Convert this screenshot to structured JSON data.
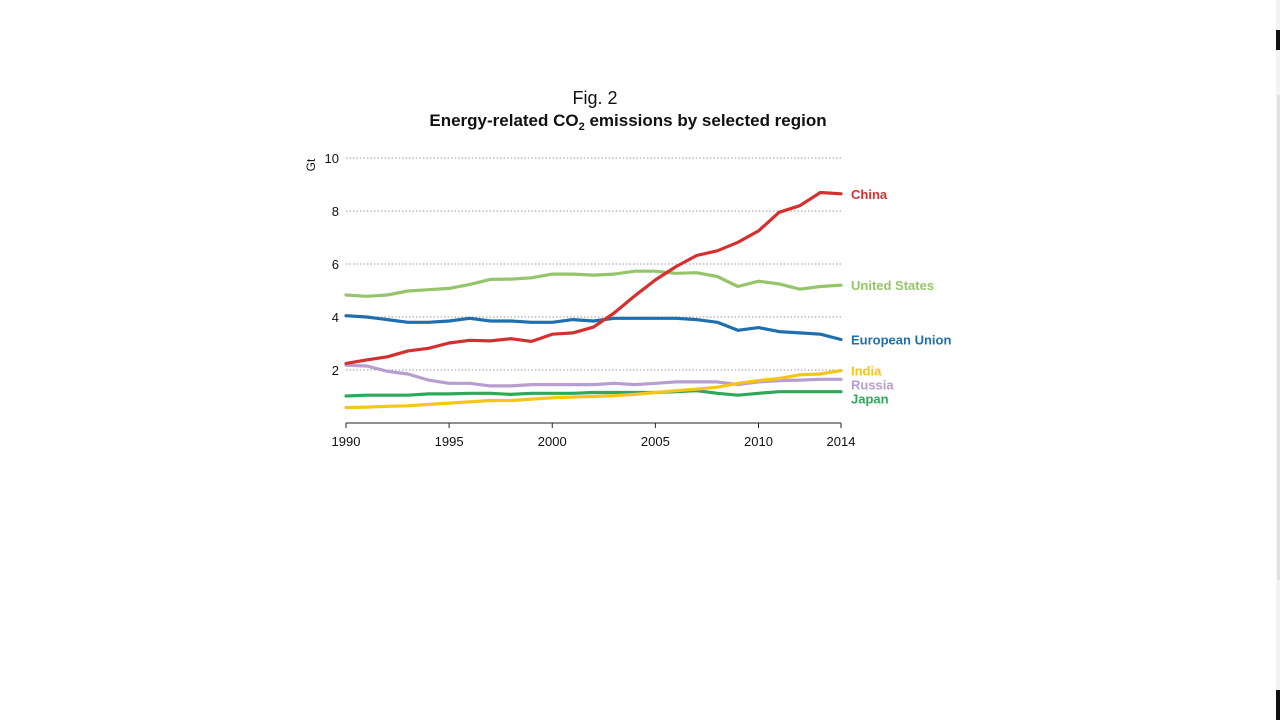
{
  "figure": {
    "label": "Fig. 2",
    "title_pre": "Energy-related CO",
    "title_sub": "2",
    "title_post": " emissions by selected region"
  },
  "chart_data": {
    "type": "line",
    "ylabel": "Gt",
    "xlabel": "",
    "ylim": [
      0,
      10
    ],
    "xlim": [
      1990,
      2014
    ],
    "yticks": [
      2,
      4,
      6,
      8,
      10
    ],
    "xticks": [
      1990,
      1995,
      2000,
      2005,
      2010,
      2014
    ],
    "grid": true,
    "legend": "labels at right end of lines",
    "x": [
      1990,
      1991,
      1992,
      1993,
      1994,
      1995,
      1996,
      1997,
      1998,
      1999,
      2000,
      2001,
      2002,
      2003,
      2004,
      2005,
      2006,
      2007,
      2008,
      2009,
      2010,
      2011,
      2012,
      2013,
      2014
    ],
    "series": [
      {
        "name": "China",
        "color": "#d62f2f",
        "values": [
          2.25,
          2.38,
          2.5,
          2.72,
          2.82,
          3.02,
          3.12,
          3.1,
          3.18,
          3.08,
          3.35,
          3.4,
          3.62,
          4.15,
          4.8,
          5.4,
          5.9,
          6.32,
          6.5,
          6.82,
          7.25,
          7.95,
          8.2,
          8.7,
          8.65
        ]
      },
      {
        "name": "United States",
        "color": "#95c56a",
        "values": [
          4.83,
          4.78,
          4.83,
          4.98,
          5.03,
          5.08,
          5.23,
          5.42,
          5.43,
          5.48,
          5.62,
          5.62,
          5.58,
          5.62,
          5.73,
          5.73,
          5.65,
          5.67,
          5.53,
          5.15,
          5.35,
          5.25,
          5.05,
          5.15,
          5.2
        ]
      },
      {
        "name": "European Union",
        "color": "#1f6fae",
        "values": [
          4.05,
          4.0,
          3.9,
          3.8,
          3.8,
          3.85,
          3.95,
          3.85,
          3.85,
          3.8,
          3.8,
          3.9,
          3.85,
          3.95,
          3.95,
          3.95,
          3.95,
          3.9,
          3.8,
          3.5,
          3.6,
          3.45,
          3.4,
          3.35,
          3.15
        ]
      },
      {
        "name": "India",
        "color": "#f5c518",
        "values": [
          0.58,
          0.6,
          0.63,
          0.65,
          0.7,
          0.75,
          0.8,
          0.85,
          0.85,
          0.9,
          0.95,
          0.98,
          1.0,
          1.03,
          1.08,
          1.15,
          1.22,
          1.28,
          1.35,
          1.5,
          1.6,
          1.68,
          1.82,
          1.85,
          1.98
        ]
      },
      {
        "name": "Russia",
        "color": "#b89dcf",
        "values": [
          2.18,
          2.15,
          1.95,
          1.85,
          1.62,
          1.5,
          1.5,
          1.4,
          1.4,
          1.45,
          1.45,
          1.45,
          1.45,
          1.5,
          1.45,
          1.5,
          1.55,
          1.55,
          1.55,
          1.45,
          1.55,
          1.6,
          1.62,
          1.65,
          1.65
        ]
      },
      {
        "name": "Japan",
        "color": "#2ea85a",
        "values": [
          1.02,
          1.05,
          1.05,
          1.05,
          1.1,
          1.1,
          1.12,
          1.12,
          1.08,
          1.12,
          1.12,
          1.12,
          1.15,
          1.15,
          1.15,
          1.15,
          1.18,
          1.22,
          1.12,
          1.05,
          1.12,
          1.18,
          1.18,
          1.18,
          1.18
        ]
      }
    ]
  }
}
